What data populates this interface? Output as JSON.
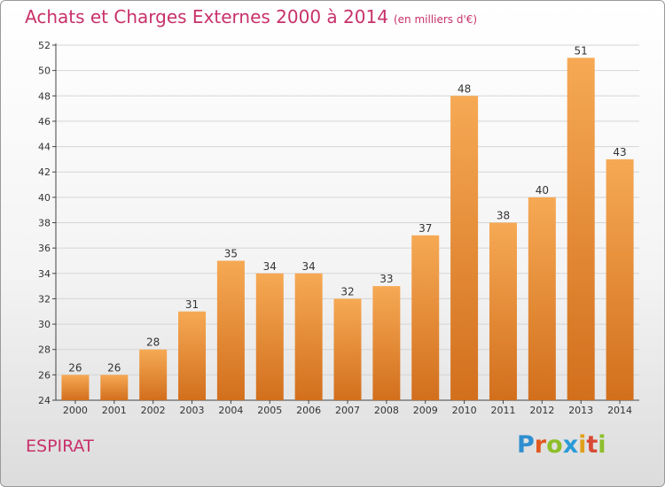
{
  "title": "Achats et Charges Externes 2000 à 2014",
  "subtitle": "(en milliers d'€)",
  "commune": "ESPIRAT",
  "logo": {
    "letters": [
      "P",
      "r",
      "o",
      "x",
      "i",
      "t",
      "i"
    ],
    "colors": [
      "#2f8fd0",
      "#e05a1f",
      "#8dbf2a",
      "#2a9bd8",
      "#e0a01b",
      "#d84a35",
      "#8dbf2a"
    ]
  },
  "colors": {
    "title": "#c8316a",
    "bar_light": "#f6a954",
    "bar_dark": "#d26f1d",
    "grid": "#d5d5d5"
  },
  "chart_data": {
    "type": "bar",
    "title": "Achats et Charges Externes 2000 à 2014",
    "subtitle": "(en milliers d'€)",
    "categories": [
      "2000",
      "2001",
      "2002",
      "2003",
      "2004",
      "2005",
      "2006",
      "2007",
      "2008",
      "2009",
      "2010",
      "2011",
      "2012",
      "2013",
      "2014"
    ],
    "values": [
      26,
      26,
      28,
      31,
      35,
      34,
      34,
      32,
      33,
      37,
      48,
      38,
      40,
      51,
      43
    ],
    "ylim": [
      24,
      52
    ],
    "yticks": [
      24,
      26,
      28,
      30,
      32,
      34,
      36,
      38,
      40,
      42,
      44,
      46,
      48,
      50,
      52
    ],
    "grid": true,
    "data_labels": true
  }
}
